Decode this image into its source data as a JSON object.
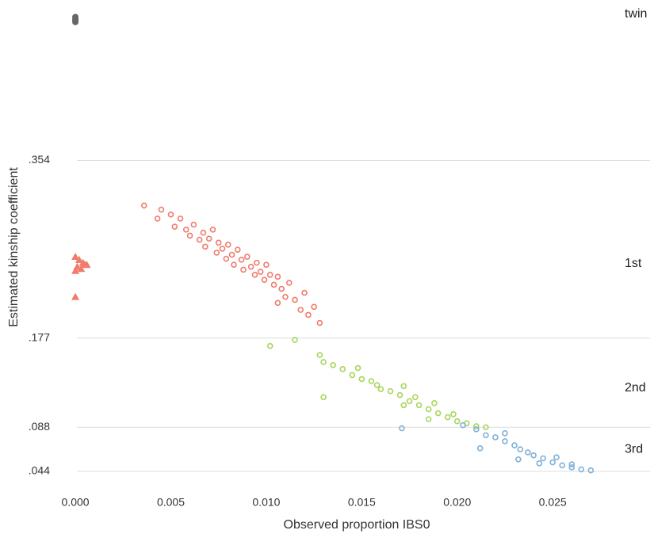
{
  "chart_data": {
    "type": "scatter",
    "x_label": "Observed proportion IBS0",
    "y_label": "Estimated kinship coefficient",
    "xlim": [
      -0.001,
      0.0301
    ],
    "ylim": [
      0.025,
      0.51
    ],
    "xticks": [
      {
        "value": 0,
        "label": "0.000"
      },
      0.005,
      {
        "value": 0.01,
        "label": "0.010"
      },
      0.015,
      {
        "value": 0.02,
        "label": "0.020"
      },
      0.025
    ],
    "yticks": [
      {
        "value": 0.044,
        "label": ".044"
      },
      {
        "value": 0.088,
        "label": ".088"
      },
      {
        "value": 0.177,
        "label": ".177"
      },
      {
        "value": 0.354,
        "label": ".354"
      }
    ],
    "grid": true,
    "annotations": [
      {
        "text": "twin",
        "y": 0.5
      },
      {
        "text": "1st",
        "y": 0.251
      },
      {
        "text": "2nd",
        "y": 0.127
      },
      {
        "text": "3rd",
        "y": 0.066
      }
    ],
    "series": [
      {
        "color": "#666666",
        "marker": "filled-circle",
        "x": [
          0,
          0,
          0,
          0
        ],
        "values": [
          0.497,
          0.495,
          0.494,
          0.492
        ]
      },
      {
        "color": "#f07c6c",
        "marker": "triangle",
        "x": [
          0,
          0.0002,
          0.0004,
          0.0006,
          0.0001,
          0.0003,
          0,
          0.0005,
          0
        ],
        "values": [
          0.258,
          0.255,
          0.252,
          0.25,
          0.248,
          0.246,
          0.244,
          0.25,
          0.218
        ]
      },
      {
        "color": "#f07c6c",
        "marker": "circle",
        "x": [
          0.0036,
          0.0045,
          0.0043,
          0.005,
          0.0052,
          0.0055,
          0.0058,
          0.006,
          0.0062,
          0.0065,
          0.0067,
          0.0068,
          0.007,
          0.0072,
          0.0074,
          0.0075,
          0.0077,
          0.0079,
          0.008,
          0.0082,
          0.0083,
          0.0085,
          0.0087,
          0.0088,
          0.009,
          0.0092,
          0.0094,
          0.0095,
          0.0097,
          0.0099,
          0.01,
          0.0102,
          0.0104,
          0.0106,
          0.0108,
          0.011,
          0.0112,
          0.0115,
          0.0118,
          0.012,
          0.0122,
          0.0125,
          0.0128,
          0.0106
        ],
        "values": [
          0.309,
          0.305,
          0.296,
          0.3,
          0.288,
          0.296,
          0.285,
          0.279,
          0.29,
          0.275,
          0.282,
          0.268,
          0.276,
          0.285,
          0.262,
          0.272,
          0.266,
          0.256,
          0.27,
          0.26,
          0.25,
          0.265,
          0.255,
          0.245,
          0.258,
          0.248,
          0.24,
          0.252,
          0.243,
          0.235,
          0.25,
          0.24,
          0.23,
          0.238,
          0.226,
          0.218,
          0.232,
          0.215,
          0.205,
          0.222,
          0.2,
          0.208,
          0.192,
          0.212
        ]
      },
      {
        "color": "#a8d65a",
        "marker": "circle",
        "x": [
          0.0102,
          0.0115,
          0.0128,
          0.013,
          0.0135,
          0.014,
          0.0145,
          0.0148,
          0.015,
          0.0155,
          0.0158,
          0.016,
          0.0165,
          0.017,
          0.0172,
          0.0175,
          0.0178,
          0.018,
          0.0185,
          0.0188,
          0.019,
          0.0195,
          0.0198,
          0.02,
          0.0205,
          0.021,
          0.0215,
          0.013,
          0.0172,
          0.0185
        ],
        "values": [
          0.169,
          0.175,
          0.16,
          0.153,
          0.15,
          0.146,
          0.14,
          0.147,
          0.136,
          0.134,
          0.13,
          0.126,
          0.124,
          0.12,
          0.129,
          0.114,
          0.118,
          0.11,
          0.106,
          0.112,
          0.102,
          0.098,
          0.101,
          0.094,
          0.092,
          0.089,
          0.088,
          0.118,
          0.11,
          0.096
        ]
      },
      {
        "color": "#7fb0d8",
        "marker": "circle",
        "x": [
          0.0171,
          0.0203,
          0.021,
          0.0215,
          0.022,
          0.0225,
          0.023,
          0.0233,
          0.0237,
          0.024,
          0.0245,
          0.025,
          0.0255,
          0.026,
          0.0265,
          0.027,
          0.0212,
          0.0232,
          0.0225,
          0.0243,
          0.026,
          0.0252
        ],
        "values": [
          0.087,
          0.09,
          0.086,
          0.08,
          0.078,
          0.074,
          0.07,
          0.066,
          0.063,
          0.06,
          0.057,
          0.053,
          0.05,
          0.048,
          0.046,
          0.045,
          0.067,
          0.056,
          0.082,
          0.052,
          0.051,
          0.058
        ]
      }
    ]
  }
}
